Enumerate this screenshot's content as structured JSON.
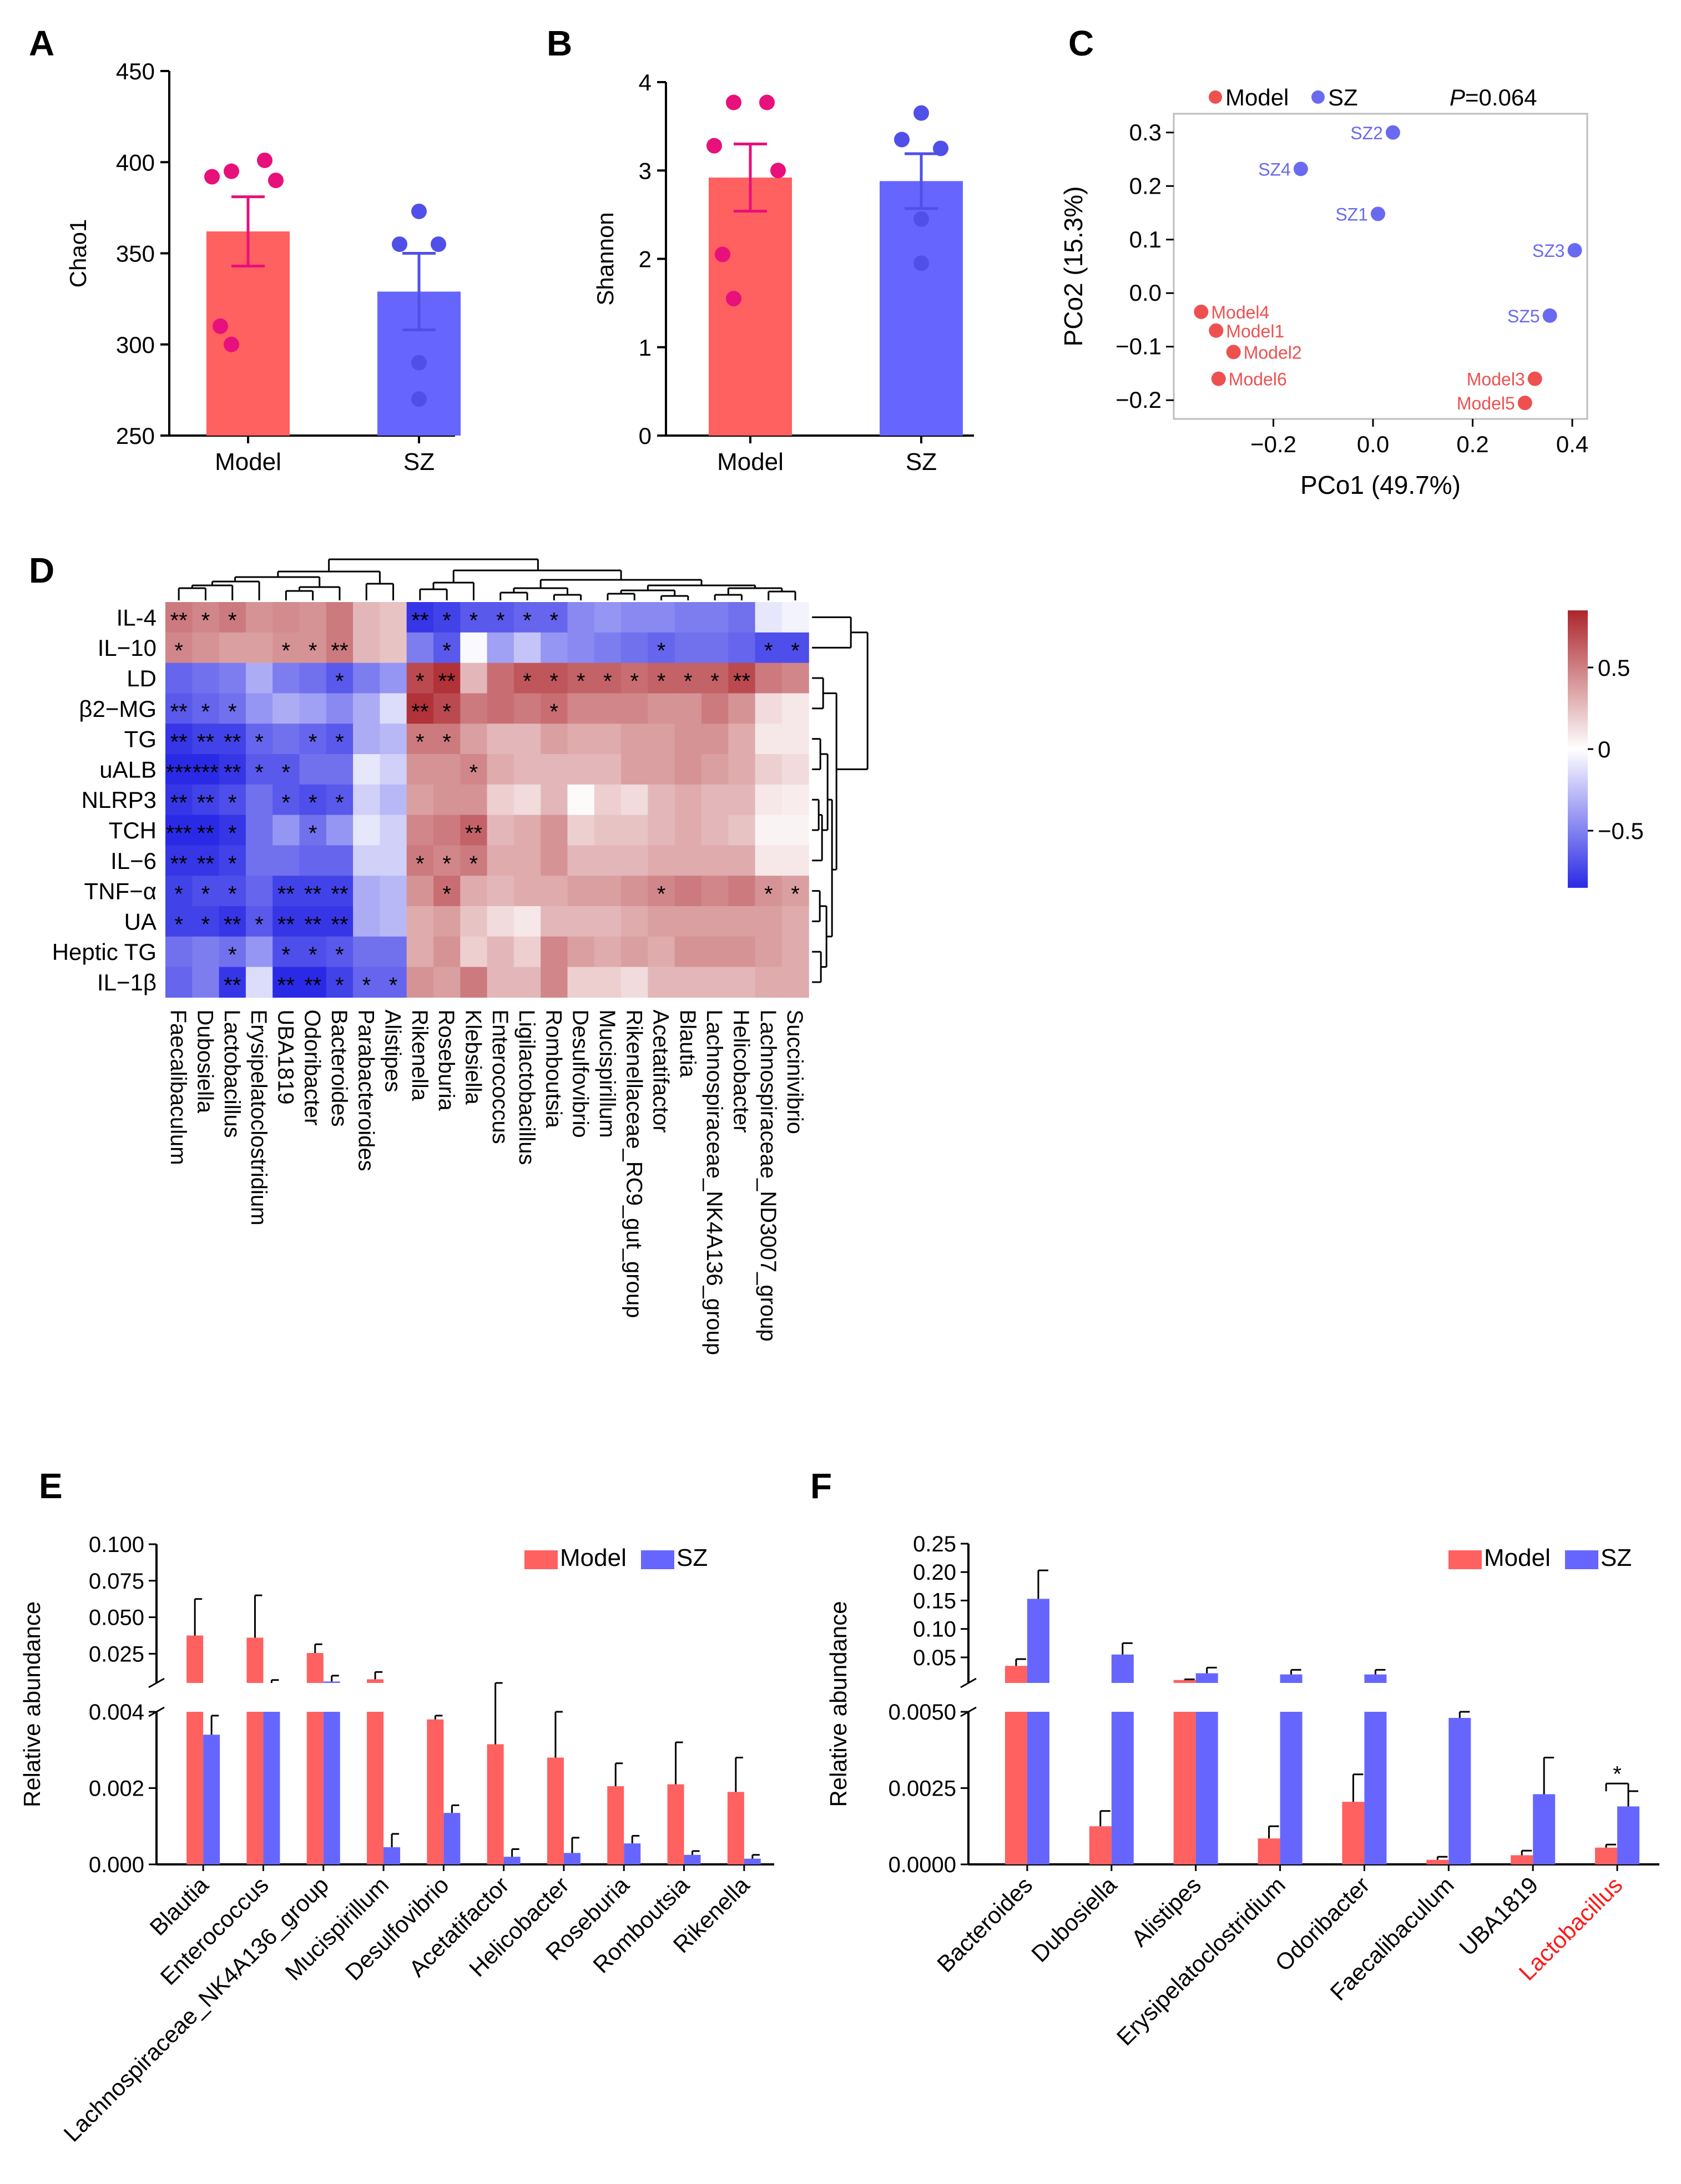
{
  "panel_letters": {
    "A": "A",
    "B": "B",
    "C": "C",
    "D": "D",
    "E": "E",
    "F": "F"
  },
  "colors": {
    "model": "#FF6060",
    "sz": "#6666FF",
    "model_point": "#E8107A",
    "sz_point": "#5050E8",
    "pcoa_model": "#EE5050",
    "pcoa_sz": "#6A6AF0",
    "red_label": "#FF1A1A"
  },
  "chart_data": [
    {
      "id": "A",
      "type": "bar",
      "title": "",
      "xlabel": "",
      "ylabel": "Chao1",
      "categories": [
        "Model",
        "SZ"
      ],
      "values": [
        362,
        329
      ],
      "errors": [
        19,
        21
      ],
      "ylim": [
        250,
        450
      ],
      "yticks": [
        250,
        300,
        350,
        400,
        450
      ],
      "points": [
        [
          401,
          395,
          392,
          390,
          310,
          300
        ],
        [
          373,
          355,
          355,
          290,
          270
        ]
      ]
    },
    {
      "id": "B",
      "type": "bar",
      "title": "",
      "xlabel": "",
      "ylabel": "Shannon",
      "categories": [
        "Model",
        "SZ"
      ],
      "values": [
        2.92,
        2.88
      ],
      "errors": [
        0.38,
        0.31
      ],
      "ylim": [
        0,
        4
      ],
      "yticks": [
        0,
        1,
        2,
        3,
        4
      ],
      "points": [
        [
          3.77,
          3.77,
          3.28,
          3.0,
          2.05,
          1.55
        ],
        [
          3.65,
          3.35,
          3.25,
          2.45,
          1.95
        ]
      ]
    },
    {
      "id": "C",
      "type": "scatter",
      "xlabel": "PCo1 (49.7%)",
      "ylabel": "PCo2 (15.3%)",
      "xlim": [
        -0.4,
        0.43
      ],
      "ylim": [
        -0.235,
        0.335
      ],
      "xticks": [
        -0.2,
        0.0,
        0.2,
        0.4
      ],
      "xtick_labels": [
        "−0.2",
        "0.0",
        "0.2",
        "0.4"
      ],
      "yticks": [
        -0.2,
        -0.1,
        0.0,
        0.1,
        0.2,
        0.3
      ],
      "ytick_labels": [
        "−0.2",
        "−0.1",
        "0.0",
        "0.1",
        "0.2",
        "0.3"
      ],
      "legend": [
        "Model",
        "SZ"
      ],
      "annotation_p": "P",
      "annotation_rest": "=0.064",
      "series": [
        {
          "name": "Model",
          "points": [
            {
              "label": "Model4",
              "x": -0.345,
              "y": -0.035,
              "side": "right"
            },
            {
              "label": "Model1",
              "x": -0.315,
              "y": -0.07,
              "side": "right"
            },
            {
              "label": "Model2",
              "x": -0.28,
              "y": -0.11,
              "side": "right"
            },
            {
              "label": "Model6",
              "x": -0.31,
              "y": -0.16,
              "side": "right"
            },
            {
              "label": "Model3",
              "x": 0.325,
              "y": -0.16,
              "side": "left"
            },
            {
              "label": "Model5",
              "x": 0.305,
              "y": -0.205,
              "side": "left"
            }
          ]
        },
        {
          "name": "SZ",
          "points": [
            {
              "label": "SZ2",
              "x": 0.04,
              "y": 0.3,
              "side": "left"
            },
            {
              "label": "SZ4",
              "x": -0.145,
              "y": 0.232,
              "side": "left"
            },
            {
              "label": "SZ1",
              "x": 0.01,
              "y": 0.148,
              "side": "left"
            },
            {
              "label": "SZ3",
              "x": 0.405,
              "y": 0.08,
              "side": "left"
            },
            {
              "label": "SZ5",
              "x": 0.355,
              "y": -0.042,
              "side": "left"
            }
          ]
        }
      ]
    },
    {
      "id": "D",
      "type": "heatmap",
      "rows": [
        "IL-4",
        "IL−10",
        "LD",
        "β2−MG",
        "TG",
        "uALB",
        "NLRP3",
        "TCH",
        "IL−6",
        "TNF−α",
        "UA",
        "Heptic TG",
        "IL−1β"
      ],
      "columns": [
        "Faecalibaculum",
        "Dubosiella",
        "Lactobacillus",
        "Erysipelatoclostridium",
        "UBA1819",
        "Odoribacter",
        "Bacteroides",
        "Parabacteroides",
        "Alistipes",
        "Rikenella",
        "Roseburia",
        "Klebsiella",
        "Enterococcus",
        "Ligilactobacillus",
        "Romboutsia",
        "Desulfovibrio",
        "Mucispirillum",
        "Rikenellaceae_RC9_gut_group",
        "Acetatifactor",
        "Blautia",
        "Lachnospiraceae_NK4A136_group",
        "Helicobacter",
        "Lachnospiraceae_ND3007_group",
        "Succinivibrio"
      ],
      "values": [
        [
          0.55,
          0.5,
          0.55,
          0.45,
          0.48,
          0.45,
          0.55,
          0.3,
          0.25,
          -0.85,
          -0.8,
          -0.7,
          -0.7,
          -0.65,
          -0.65,
          -0.5,
          -0.45,
          -0.5,
          -0.5,
          -0.55,
          -0.55,
          -0.6,
          -0.1,
          -0.05
        ],
        [
          0.5,
          0.45,
          0.4,
          0.4,
          0.45,
          0.45,
          0.55,
          0.3,
          0.25,
          -0.55,
          -0.7,
          -0.02,
          -0.4,
          -0.25,
          -0.45,
          -0.5,
          -0.55,
          -0.6,
          -0.65,
          -0.6,
          -0.6,
          -0.65,
          -0.75,
          -0.75
        ],
        [
          -0.65,
          -0.6,
          -0.55,
          -0.35,
          -0.55,
          -0.6,
          -0.7,
          -0.55,
          -0.45,
          0.75,
          0.85,
          0.3,
          0.6,
          0.7,
          0.7,
          0.65,
          0.65,
          0.6,
          0.65,
          0.65,
          0.65,
          0.75,
          0.55,
          0.5
        ],
        [
          -0.7,
          -0.65,
          -0.6,
          -0.45,
          -0.35,
          -0.4,
          -0.5,
          -0.35,
          -0.15,
          0.85,
          0.75,
          0.55,
          0.6,
          0.55,
          0.6,
          0.5,
          0.5,
          0.5,
          0.45,
          0.45,
          0.55,
          0.45,
          0.15,
          0.1
        ],
        [
          -0.85,
          -0.8,
          -0.8,
          -0.65,
          -0.6,
          -0.65,
          -0.7,
          -0.35,
          -0.3,
          0.55,
          0.55,
          0.4,
          0.3,
          0.3,
          0.4,
          0.35,
          0.35,
          0.4,
          0.4,
          0.45,
          0.45,
          0.35,
          0.1,
          0.1
        ],
        [
          -0.95,
          -0.95,
          -0.85,
          -0.7,
          -0.7,
          -0.6,
          -0.6,
          -0.1,
          -0.2,
          0.45,
          0.45,
          0.5,
          0.35,
          0.3,
          0.3,
          0.3,
          0.3,
          0.4,
          0.4,
          0.45,
          0.4,
          0.35,
          0.2,
          0.15
        ],
        [
          -0.85,
          -0.8,
          -0.75,
          -0.6,
          -0.7,
          -0.75,
          -0.7,
          -0.2,
          -0.3,
          0.4,
          0.45,
          0.45,
          0.2,
          0.15,
          0.3,
          0.02,
          0.2,
          0.15,
          0.3,
          0.35,
          0.3,
          0.3,
          0.1,
          0.08
        ],
        [
          -0.95,
          -0.9,
          -0.85,
          -0.6,
          -0.45,
          -0.6,
          -0.45,
          -0.1,
          -0.2,
          0.5,
          0.55,
          0.65,
          0.3,
          0.35,
          0.45,
          0.2,
          0.25,
          0.25,
          0.3,
          0.35,
          0.3,
          0.25,
          0.05,
          0.05
        ],
        [
          -0.85,
          -0.85,
          -0.8,
          -0.6,
          -0.6,
          -0.65,
          -0.65,
          -0.2,
          -0.2,
          0.55,
          0.5,
          0.55,
          0.35,
          0.35,
          0.45,
          0.3,
          0.3,
          0.3,
          0.35,
          0.35,
          0.35,
          0.35,
          0.1,
          0.1
        ],
        [
          -0.8,
          -0.75,
          -0.75,
          -0.65,
          -0.8,
          -0.8,
          -0.8,
          -0.35,
          -0.3,
          0.45,
          0.6,
          0.35,
          0.3,
          0.35,
          0.35,
          0.4,
          0.4,
          0.45,
          0.5,
          0.55,
          0.5,
          0.55,
          0.45,
          0.4
        ],
        [
          -0.8,
          -0.8,
          -0.85,
          -0.7,
          -0.85,
          -0.85,
          -0.85,
          -0.35,
          -0.3,
          0.35,
          0.4,
          0.25,
          0.15,
          0.1,
          0.3,
          0.3,
          0.3,
          0.35,
          0.4,
          0.4,
          0.4,
          0.4,
          0.4,
          0.35
        ],
        [
          -0.6,
          -0.55,
          -0.6,
          -0.45,
          -0.75,
          -0.75,
          -0.7,
          -0.6,
          -0.6,
          0.35,
          0.45,
          0.2,
          0.3,
          0.2,
          0.5,
          0.4,
          0.35,
          0.4,
          0.35,
          0.45,
          0.45,
          0.45,
          0.4,
          0.35
        ],
        [
          -0.65,
          -0.55,
          -0.85,
          -0.15,
          -0.9,
          -0.9,
          -0.8,
          -0.65,
          -0.65,
          0.45,
          0.4,
          0.55,
          0.3,
          0.3,
          0.5,
          0.2,
          0.2,
          0.15,
          0.3,
          0.3,
          0.3,
          0.3,
          0.35,
          0.35
        ]
      ],
      "stars": [
        [
          "**",
          "*",
          "*",
          "",
          "",
          "",
          "",
          "",
          "",
          "**",
          "*",
          "*",
          "*",
          "*",
          "*",
          "",
          "",
          "",
          "",
          "",
          "",
          "",
          "",
          ""
        ],
        [
          "*",
          "",
          "",
          "",
          "*",
          "*",
          "**",
          "",
          "",
          "",
          "*",
          "",
          "",
          "",
          "",
          "",
          "",
          "",
          "*",
          "",
          "",
          "",
          "*",
          "*"
        ],
        [
          "",
          "",
          "",
          "",
          "",
          "",
          "*",
          "",
          "",
          "*",
          "**",
          "",
          "",
          "*",
          "*",
          "*",
          "*",
          "*",
          "*",
          "*",
          "*",
          "**",
          "",
          ""
        ],
        [
          "**",
          "*",
          "*",
          "",
          "",
          "",
          "",
          "",
          "",
          "**",
          "*",
          "",
          "",
          "",
          "*",
          "",
          "",
          "",
          "",
          "",
          "",
          "",
          "",
          ""
        ],
        [
          "**",
          "**",
          "**",
          "*",
          "",
          "*",
          "*",
          "",
          "",
          "*",
          "*",
          "",
          "",
          "",
          "",
          "",
          "",
          "",
          "",
          "",
          "",
          "",
          "",
          ""
        ],
        [
          "***",
          "***",
          "**",
          "*",
          "*",
          "",
          "",
          "",
          "",
          "",
          "",
          "*",
          "",
          "",
          "",
          "",
          "",
          "",
          "",
          "",
          "",
          "",
          "",
          ""
        ],
        [
          "**",
          "**",
          "*",
          "",
          "*",
          "*",
          "*",
          "",
          "",
          "",
          "",
          "",
          "",
          "",
          "",
          "",
          "",
          "",
          "",
          "",
          "",
          "",
          "",
          ""
        ],
        [
          "***",
          "**",
          "*",
          "",
          "",
          "*",
          "",
          "",
          "",
          "",
          "",
          "**",
          "",
          "",
          "",
          "",
          "",
          "",
          "",
          "",
          "",
          "",
          "",
          ""
        ],
        [
          "**",
          "**",
          "*",
          "",
          "",
          "",
          "",
          "",
          "",
          "*",
          "*",
          "*",
          "",
          "",
          "",
          "",
          "",
          "",
          "",
          "",
          "",
          "",
          "",
          ""
        ],
        [
          "*",
          "*",
          "*",
          "",
          "**",
          "**",
          "**",
          "",
          "",
          "",
          "*",
          "",
          "",
          "",
          "",
          "",
          "",
          "",
          "*",
          "",
          "",
          "",
          "*",
          "*"
        ],
        [
          "*",
          "*",
          "**",
          "*",
          "**",
          "**",
          "**",
          "",
          "",
          "",
          "",
          "",
          "",
          "",
          "",
          "",
          "",
          "",
          "",
          "",
          "",
          "",
          "",
          ""
        ],
        [
          "",
          "",
          "*",
          "",
          "*",
          "*",
          "*",
          "",
          "",
          "",
          "",
          "",
          "",
          "",
          "",
          "",
          "",
          "",
          "",
          "",
          "",
          "",
          "",
          ""
        ],
        [
          "",
          "",
          "**",
          "",
          "**",
          "**",
          "*",
          "*",
          "*",
          "",
          "",
          "",
          "",
          "",
          "",
          "",
          "",
          "",
          "",
          "",
          "",
          "",
          "",
          ""
        ]
      ],
      "colorbar": {
        "min": -0.85,
        "max": 0.85,
        "ticks": [
          0.5,
          0,
          -0.5
        ],
        "tick_labels": [
          "0.5",
          "0",
          "−0.5"
        ]
      }
    },
    {
      "id": "E",
      "type": "bar",
      "ylabel": "Relative abundance",
      "categories": [
        "Blautia",
        "Enterococcus",
        "Lachnospiraceae_NK4A136_group",
        "Mucispirillum",
        "Desulfovibrio",
        "Acetatifactor",
        "Helicobacter",
        "Roseburia",
        "Romboutsia",
        "Rikenella"
      ],
      "series": [
        {
          "name": "Model",
          "values": [
            0.0375,
            0.036,
            0.0255,
            0.0075,
            0.0038,
            0.00315,
            0.0028,
            0.00205,
            0.0021,
            0.0019
          ],
          "errors": [
            0.025,
            0.029,
            0.006,
            0.005,
            0.0001,
            0.0009,
            0.0012,
            0.0006,
            0.0011,
            0.0009
          ]
        },
        {
          "name": "SZ",
          "values": [
            0.0034,
            0.005,
            0.006,
            0.00045,
            0.00135,
            0.0002,
            0.0003,
            0.00055,
            0.00025,
            0.00015
          ],
          "errors": [
            0.0005,
            0.002,
            0.004,
            0.00035,
            0.0002,
            0.0002,
            0.0004,
            0.0002,
            0.0001,
            0.0001
          ]
        }
      ],
      "upper_ylim": [
        0.005,
        0.1
      ],
      "upper_ticks": [
        0.025,
        0.05,
        0.075,
        0.1
      ],
      "upper_tick_labels": [
        "0.025",
        "0.050",
        "0.075",
        "0.100"
      ],
      "lower_ylim": [
        0,
        0.004
      ],
      "lower_ticks": [
        0,
        0.002,
        0.004
      ],
      "lower_tick_labels": [
        "0.000",
        "0.002",
        "0.004"
      ],
      "legend": [
        "Model",
        "SZ"
      ]
    },
    {
      "id": "F",
      "type": "bar",
      "ylabel": "Relative abundance",
      "categories": [
        "Bacteroides",
        "Dubosiella",
        "Alistipes",
        "Erysipelatoclostridium",
        "Odoribacter",
        "Faecalibaculum",
        "UBA1819",
        "Lactobacillus"
      ],
      "highlight_category": "Lactobacillus",
      "series": [
        {
          "name": "Model",
          "values": [
            0.035,
            0.00125,
            0.0102,
            0.00085,
            0.00205,
            0.00015,
            0.0003,
            0.00055
          ],
          "errors": [
            0.012,
            0.0005,
            0.0012,
            0.0004,
            0.0009,
            0.0001,
            0.00015,
            0.0001
          ]
        },
        {
          "name": "SZ",
          "values": [
            0.153,
            0.055,
            0.022,
            0.02,
            0.02,
            0.0048,
            0.0023,
            0.0019
          ],
          "errors": [
            0.05,
            0.02,
            0.01,
            0.008,
            0.008,
            0.0002,
            0.0012,
            0.0005
          ]
        }
      ],
      "upper_ylim": [
        0.005,
        0.25
      ],
      "upper_ticks": [
        0.05,
        0.1,
        0.15,
        0.2,
        0.25
      ],
      "upper_tick_labels": [
        "0.05",
        "0.10",
        "0.15",
        "0.20",
        "0.25"
      ],
      "lower_ylim": [
        0,
        0.005
      ],
      "lower_ticks": [
        0,
        0.0025,
        0.005
      ],
      "lower_tick_labels": [
        "0.0000",
        "0.0025",
        "0.0050"
      ],
      "significance": "*",
      "legend": [
        "Model",
        "SZ"
      ]
    }
  ]
}
